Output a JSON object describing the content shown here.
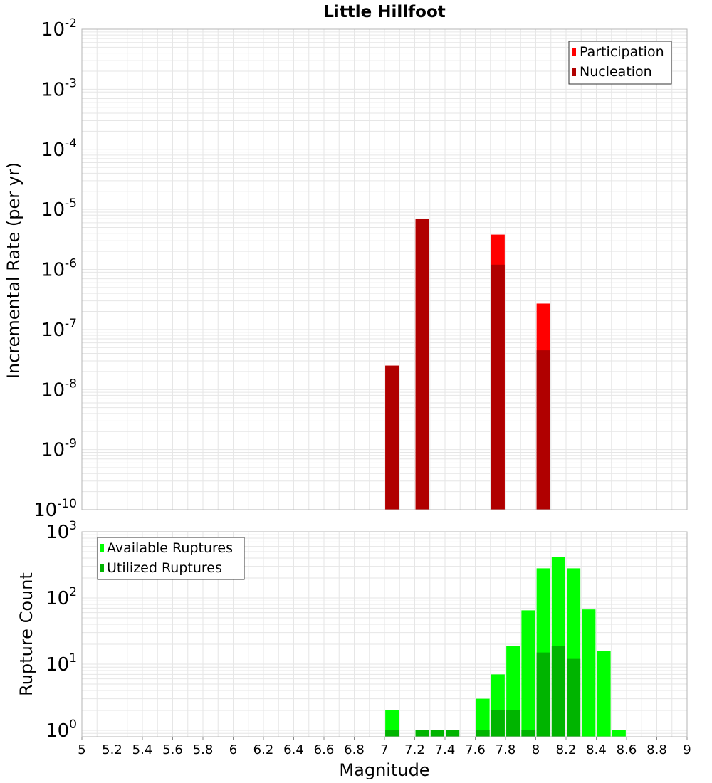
{
  "colors": {
    "participation": "#ff0000",
    "nucleation": "#b00000",
    "available": "#00ff00",
    "utilized": "#00b400",
    "grid": "#e6e6e6",
    "frame": "#b4b4b4"
  },
  "chart_data": [
    {
      "type": "bar",
      "title": "Little Hillfoot",
      "xlabel": "",
      "ylabel": "Incremental Rate (per yr)",
      "y_scale": "log",
      "ylim": [
        1e-10,
        0.01
      ],
      "xlim": [
        5,
        9
      ],
      "y_ticks": [
        {
          "base": "10",
          "exp": "-10",
          "value": 1e-10
        },
        {
          "base": "10",
          "exp": "-9",
          "value": 1e-09
        },
        {
          "base": "10",
          "exp": "-8",
          "value": 1e-08
        },
        {
          "base": "10",
          "exp": "-7",
          "value": 1e-07
        },
        {
          "base": "10",
          "exp": "-6",
          "value": 1e-06
        },
        {
          "base": "10",
          "exp": "-5",
          "value": 1e-05
        },
        {
          "base": "10",
          "exp": "-4",
          "value": 0.0001
        },
        {
          "base": "10",
          "exp": "-3",
          "value": 0.001
        },
        {
          "base": "10",
          "exp": "-2",
          "value": 0.01
        }
      ],
      "legend": {
        "position": "top-right",
        "entries": [
          "Participation",
          "Nucleation"
        ]
      },
      "series": [
        {
          "name": "Participation",
          "x": [
            7.05,
            7.25,
            7.75,
            8.05
          ],
          "values": [
            2.5e-08,
            7e-06,
            3.8e-06,
            2.7e-07
          ]
        },
        {
          "name": "Nucleation",
          "x": [
            7.05,
            7.25,
            7.75,
            8.05
          ],
          "values": [
            2.5e-08,
            7e-06,
            1.2e-06,
            4.5e-08
          ]
        }
      ]
    },
    {
      "type": "bar",
      "xlabel": "Magnitude",
      "ylabel": "Rupture Count",
      "y_scale": "log",
      "ylim": [
        0.8,
        1000
      ],
      "xlim": [
        5,
        9
      ],
      "x_ticks": [
        "5",
        "5.2",
        "5.4",
        "5.6",
        "5.8",
        "6",
        "6.2",
        "6.4",
        "6.6",
        "6.8",
        "7",
        "7.2",
        "7.4",
        "7.6",
        "7.8",
        "8",
        "8.2",
        "8.4",
        "8.6",
        "8.8",
        "9"
      ],
      "y_ticks": [
        {
          "base": "10",
          "exp": "0",
          "value": 1
        },
        {
          "base": "10",
          "exp": "1",
          "value": 10
        },
        {
          "base": "10",
          "exp": "2",
          "value": 100
        },
        {
          "base": "10",
          "exp": "3",
          "value": 1000
        }
      ],
      "legend": {
        "position": "top-left",
        "entries": [
          "Available Ruptures",
          "Utilized Ruptures"
        ]
      },
      "series": [
        {
          "name": "Available Ruptures",
          "x": [
            7.05,
            7.25,
            7.35,
            7.45,
            7.65,
            7.75,
            7.85,
            7.95,
            8.05,
            8.15,
            8.25,
            8.35,
            8.45,
            8.55
          ],
          "values": [
            2,
            1,
            1,
            1,
            3,
            7,
            19,
            65,
            280,
            420,
            280,
            67,
            16,
            1
          ]
        },
        {
          "name": "Utilized Ruptures",
          "x": [
            7.05,
            7.25,
            7.35,
            7.45,
            7.65,
            7.75,
            7.85,
            7.95,
            8.05,
            8.15,
            8.25
          ],
          "values": [
            1,
            1,
            1,
            1,
            1,
            2,
            2,
            1,
            15,
            19,
            12
          ]
        }
      ]
    }
  ]
}
